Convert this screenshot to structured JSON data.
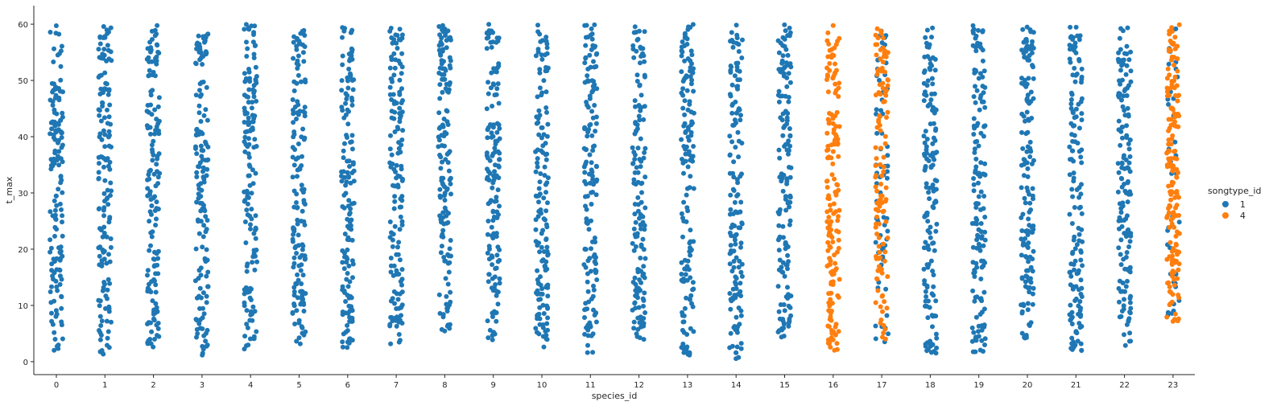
{
  "chart_data": {
    "type": "scatter",
    "subtype": "strip",
    "xlabel": "species_id",
    "ylabel": "t_max",
    "categories": [
      "0",
      "1",
      "2",
      "3",
      "4",
      "5",
      "6",
      "7",
      "8",
      "9",
      "10",
      "11",
      "12",
      "13",
      "14",
      "15",
      "16",
      "17",
      "18",
      "19",
      "20",
      "21",
      "22",
      "23"
    ],
    "yticks": [
      0,
      10,
      20,
      30,
      40,
      50,
      60
    ],
    "ylim": [
      -2.3,
      63.3
    ],
    "grid": false,
    "legend": {
      "title": "songtype_id",
      "placement": "right",
      "entries": [
        {
          "label": "1",
          "color": "#1f77b4"
        },
        {
          "label": "4",
          "color": "#ff7f0e"
        }
      ]
    },
    "series": [
      {
        "name": "1",
        "color": "#1f77b4",
        "groups": [
          {
            "category": "0",
            "y_range": [
              1.5,
              60
            ],
            "count": 150
          },
          {
            "category": "1",
            "y_range": [
              1,
              60
            ],
            "count": 150
          },
          {
            "category": "2",
            "y_range": [
              2.5,
              60
            ],
            "count": 150
          },
          {
            "category": "3",
            "y_range": [
              1,
              60
            ],
            "count": 150
          },
          {
            "category": "4",
            "y_range": [
              2,
              60
            ],
            "count": 150
          },
          {
            "category": "5",
            "y_range": [
              2.5,
              60
            ],
            "count": 150
          },
          {
            "category": "6",
            "y_range": [
              2.5,
              60
            ],
            "count": 150
          },
          {
            "category": "7",
            "y_range": [
              3,
              60
            ],
            "count": 150
          },
          {
            "category": "8",
            "y_range": [
              4.5,
              60
            ],
            "count": 150
          },
          {
            "category": "9",
            "y_range": [
              3.5,
              60
            ],
            "count": 150
          },
          {
            "category": "10",
            "y_range": [
              2.5,
              60
            ],
            "count": 150
          },
          {
            "category": "11",
            "y_range": [
              1.5,
              60
            ],
            "count": 150
          },
          {
            "category": "12",
            "y_range": [
              3.5,
              60
            ],
            "count": 150
          },
          {
            "category": "13",
            "y_range": [
              1,
              60
            ],
            "count": 150
          },
          {
            "category": "14",
            "y_range": [
              0.5,
              60
            ],
            "count": 150
          },
          {
            "category": "15",
            "y_range": [
              4,
              60
            ],
            "count": 150
          },
          {
            "category": "17",
            "y_range": [
              3,
              60
            ],
            "count": 70
          },
          {
            "category": "18",
            "y_range": [
              1,
              60
            ],
            "count": 150
          },
          {
            "category": "19",
            "y_range": [
              1.5,
              60
            ],
            "count": 150
          },
          {
            "category": "20",
            "y_range": [
              4,
              60
            ],
            "count": 150
          },
          {
            "category": "21",
            "y_range": [
              1.5,
              60
            ],
            "count": 150
          },
          {
            "category": "22",
            "y_range": [
              2,
              60
            ],
            "count": 150
          },
          {
            "category": "23",
            "y_range": [
              7,
              60
            ],
            "count": 40
          }
        ]
      },
      {
        "name": "4",
        "color": "#ff7f0e",
        "groups": [
          {
            "category": "16",
            "y_range": [
              2,
              60
            ],
            "count": 170
          },
          {
            "category": "17",
            "y_range": [
              3,
              60
            ],
            "count": 120
          },
          {
            "category": "23",
            "y_range": [
              7,
              60
            ],
            "count": 170
          }
        ]
      }
    ]
  }
}
